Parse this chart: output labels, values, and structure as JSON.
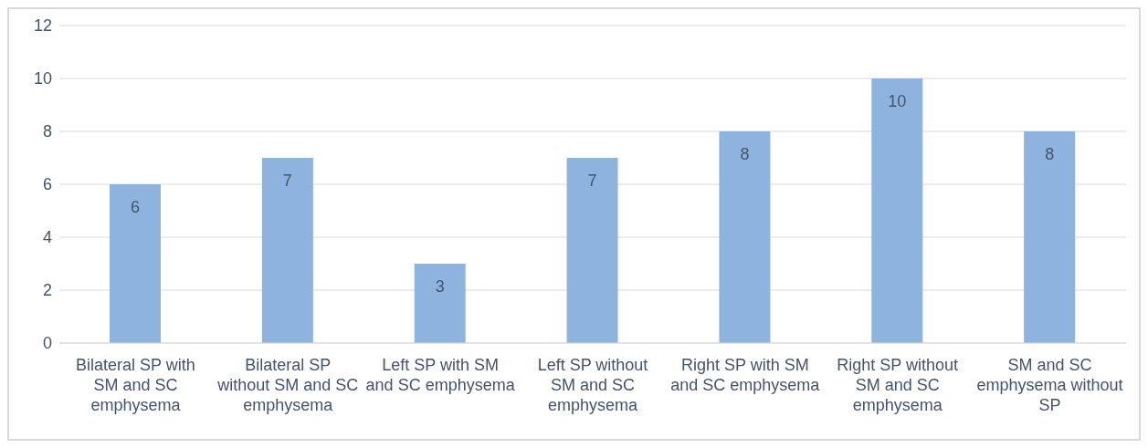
{
  "chart_data": {
    "type": "bar",
    "categories": [
      "Bilateral SP with SM and SC emphysema",
      "Bilateral SP without SM and SC emphysema",
      "Left SP with SM and SC emphysema",
      "Left SP without SM and SC emphysema",
      "Right SP with SM and SC emphysema",
      "Right SP without SM and SC emphysema",
      "SM and SC emphysema without SP"
    ],
    "values": [
      6,
      7,
      3,
      7,
      8,
      10,
      8
    ],
    "color": "#8fb3df",
    "ylim": [
      0,
      12
    ],
    "yticks": [
      0,
      2,
      4,
      6,
      8,
      10,
      12
    ],
    "grid": "y",
    "data_labels": true
  }
}
